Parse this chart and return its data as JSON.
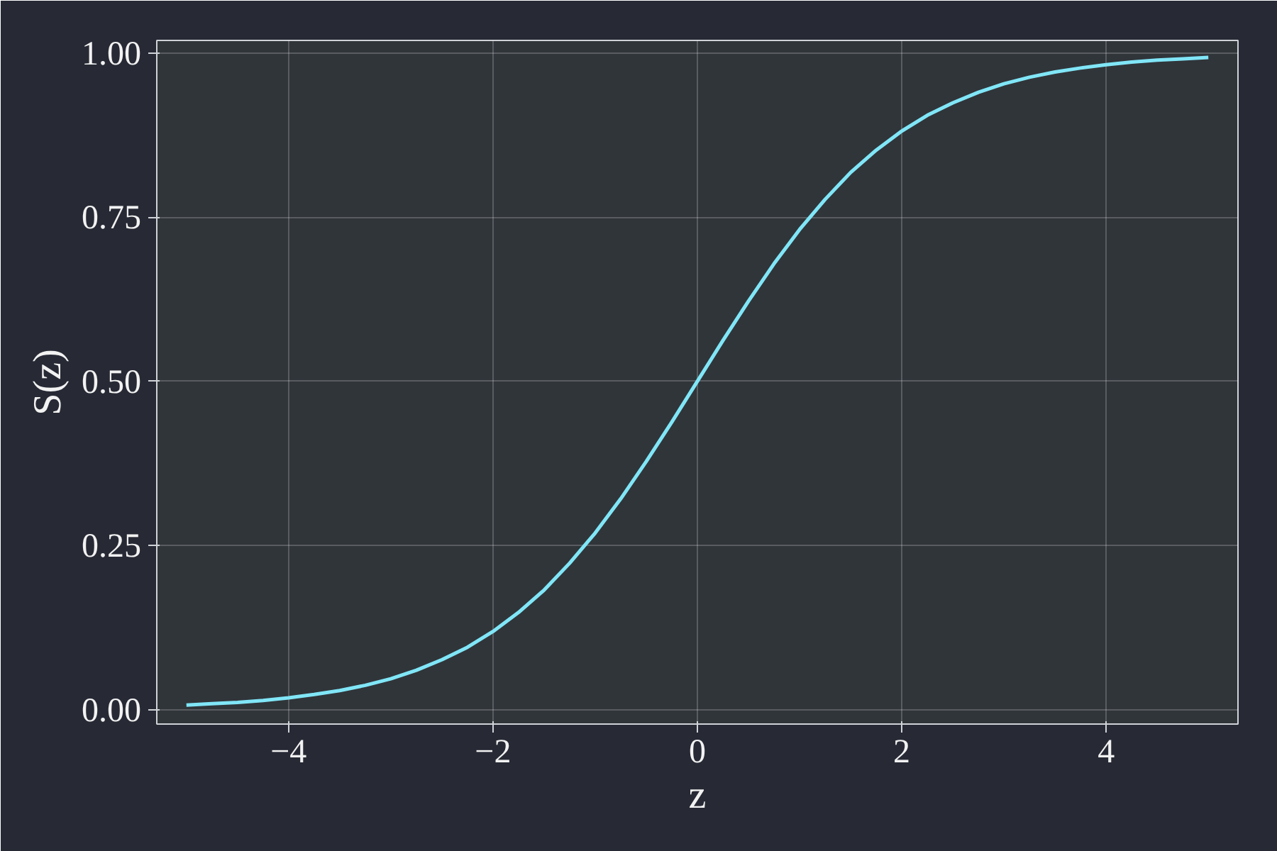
{
  "chart_data": {
    "type": "line",
    "xlabel": "z",
    "ylabel": "S(z)",
    "x": [
      -5,
      -4.75,
      -4.5,
      -4.25,
      -4,
      -3.75,
      -3.5,
      -3.25,
      -3,
      -2.75,
      -2.5,
      -2.25,
      -2,
      -1.75,
      -1.5,
      -1.25,
      -1,
      -0.75,
      -0.5,
      -0.25,
      0,
      0.25,
      0.5,
      0.75,
      1,
      1.25,
      1.5,
      1.75,
      2,
      2.25,
      2.5,
      2.75,
      3,
      3.25,
      3.5,
      3.75,
      4,
      4.25,
      4.5,
      4.75,
      5
    ],
    "series": [
      {
        "color": "#80e6f7",
        "values": [
          0.007,
          0.009,
          0.011,
          0.014,
          0.018,
          0.023,
          0.029,
          0.037,
          0.047,
          0.06,
          0.076,
          0.095,
          0.119,
          0.148,
          0.182,
          0.223,
          0.269,
          0.321,
          0.378,
          0.438,
          0.5,
          0.562,
          0.622,
          0.679,
          0.731,
          0.777,
          0.818,
          0.852,
          0.881,
          0.905,
          0.924,
          0.94,
          0.953,
          0.963,
          0.971,
          0.977,
          0.982,
          0.986,
          0.989,
          0.991,
          0.993
        ]
      }
    ],
    "xlim": [
      -5.29,
      5.29
    ],
    "ylim": [
      -0.022,
      1.019
    ],
    "xticks": [
      {
        "value": -4,
        "label": "−4"
      },
      {
        "value": -2,
        "label": "−2"
      },
      0,
      2,
      4
    ],
    "yticks": [
      {
        "value": 0,
        "label": "0.00"
      },
      0.25,
      {
        "value": 0.5,
        "label": "0.50"
      },
      0.75,
      {
        "value": 1,
        "label": "1.00"
      }
    ],
    "grid": true,
    "line_style": "solid"
  }
}
